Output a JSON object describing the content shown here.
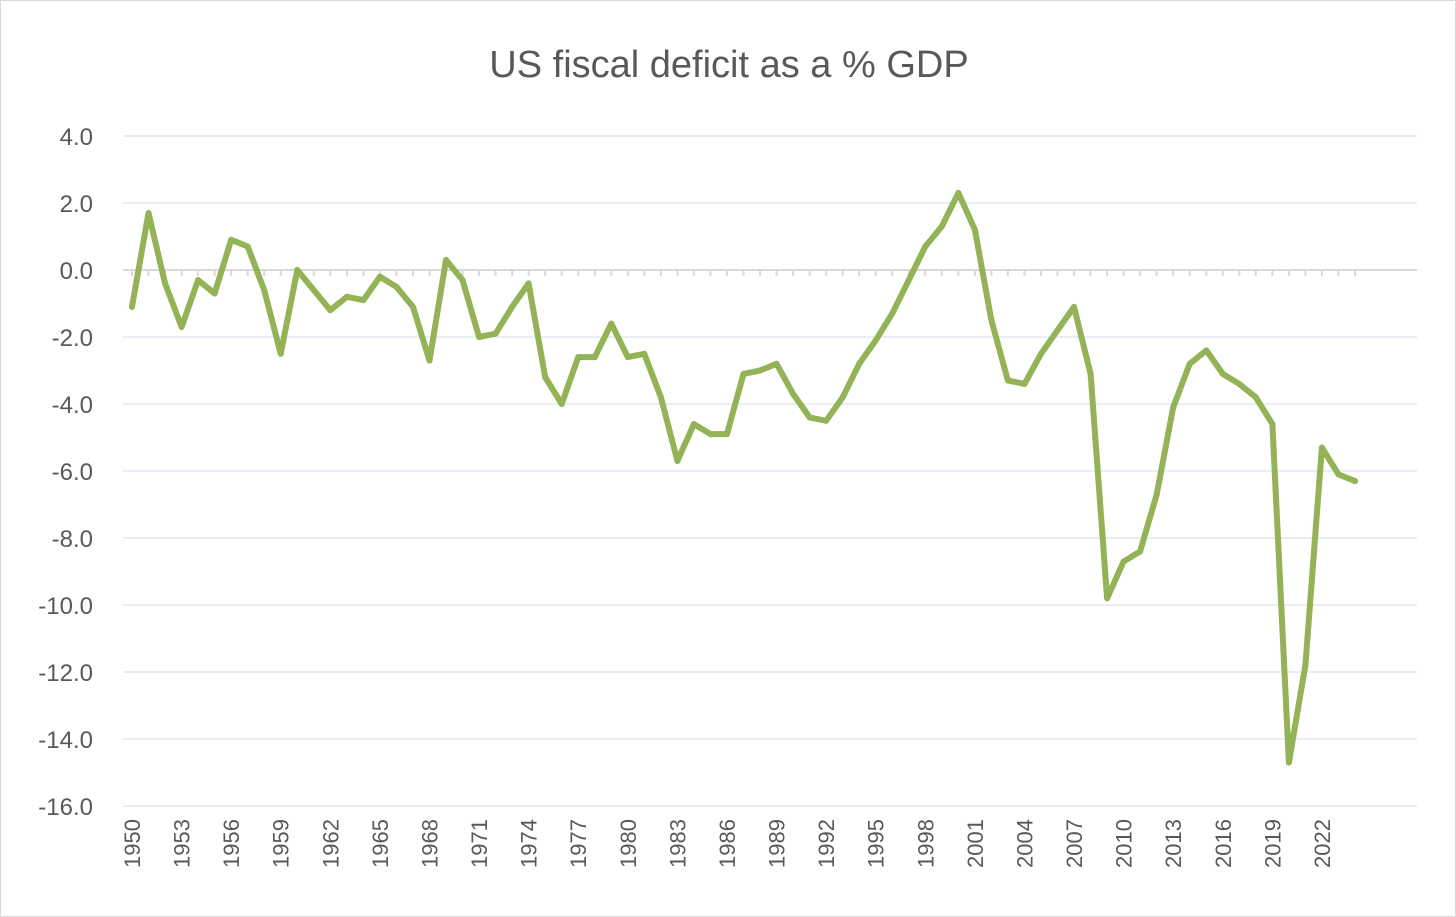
{
  "chart_data": {
    "type": "line",
    "title": "US fiscal deficit as a % GDP",
    "xlabel": "",
    "ylabel": "",
    "ylim": [
      -16,
      4
    ],
    "yticks": [
      "4.0",
      "2.0",
      "0.0",
      "-2.0",
      "-4.0",
      "-6.0",
      "-8.0",
      "-10.0",
      "-12.0",
      "-14.0",
      "-16.0"
    ],
    "ytick_values": [
      4,
      2,
      0,
      -2,
      -4,
      -6,
      -8,
      -10,
      -12,
      -14,
      -16
    ],
    "xtick_labels": [
      "1950",
      "1953",
      "1956",
      "1959",
      "1962",
      "1965",
      "1968",
      "1971",
      "1974",
      "1977",
      "1980",
      "1983",
      "1986",
      "1989",
      "1992",
      "1995",
      "1998",
      "2001",
      "2004",
      "2007",
      "2010",
      "2013",
      "2016",
      "2019",
      "2022"
    ],
    "grid": true,
    "series": [
      {
        "name": "US fiscal deficit as a % GDP",
        "color": "#93b356",
        "x": [
          1950,
          1951,
          1952,
          1953,
          1954,
          1955,
          1956,
          1957,
          1958,
          1959,
          1960,
          1961,
          1962,
          1963,
          1964,
          1965,
          1966,
          1967,
          1968,
          1969,
          1970,
          1971,
          1972,
          1973,
          1974,
          1975,
          1976,
          1977,
          1978,
          1979,
          1980,
          1981,
          1982,
          1983,
          1984,
          1985,
          1986,
          1987,
          1988,
          1989,
          1990,
          1991,
          1992,
          1993,
          1994,
          1995,
          1996,
          1997,
          1998,
          1999,
          2000,
          2001,
          2002,
          2003,
          2004,
          2005,
          2006,
          2007,
          2008,
          2009,
          2010,
          2011,
          2012,
          2013,
          2014,
          2015,
          2016,
          2017,
          2018,
          2019,
          2020,
          2021,
          2022,
          2023,
          2024
        ],
        "values": [
          -1.1,
          1.7,
          -0.4,
          -1.7,
          -0.3,
          -0.7,
          0.9,
          0.7,
          -0.6,
          -2.5,
          0.0,
          -0.6,
          -1.2,
          -0.8,
          -0.9,
          -0.2,
          -0.5,
          -1.1,
          -2.7,
          0.3,
          -0.3,
          -2.0,
          -1.9,
          -1.1,
          -0.4,
          -3.2,
          -4.0,
          -2.6,
          -2.6,
          -1.6,
          -2.6,
          -2.5,
          -3.8,
          -5.7,
          -4.6,
          -4.9,
          -4.9,
          -3.1,
          -3.0,
          -2.8,
          -3.7,
          -4.4,
          -4.5,
          -3.8,
          -2.8,
          -2.1,
          -1.3,
          -0.3,
          0.7,
          1.3,
          2.3,
          1.2,
          -1.5,
          -3.3,
          -3.4,
          -2.5,
          -1.8,
          -1.1,
          -3.1,
          -9.8,
          -8.7,
          -8.4,
          -6.7,
          -4.1,
          -2.8,
          -2.4,
          -3.1,
          -3.4,
          -3.8,
          -4.6,
          -14.7,
          -11.8,
          -5.3,
          -6.1,
          -6.3
        ]
      }
    ]
  }
}
